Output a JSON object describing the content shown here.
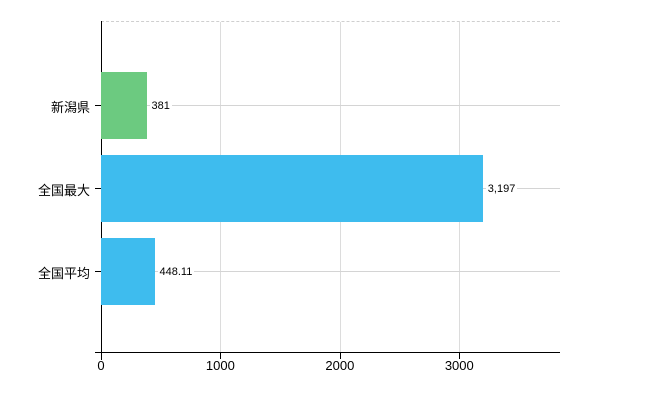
{
  "chart_data": {
    "type": "bar",
    "orientation": "horizontal",
    "title": "",
    "xlabel": "",
    "ylabel": "",
    "grid": true,
    "xlim": [
      0,
      3843
    ],
    "categories": [
      "新潟県",
      "全国最大",
      "全国平均"
    ],
    "values": [
      381,
      3197,
      448.11
    ],
    "x_tick_values": [
      0,
      1000,
      2000,
      3000
    ],
    "x_ticks": [
      "0",
      "1000",
      "2000",
      "3000"
    ],
    "rows": [
      {
        "label": "新潟県",
        "value": 381,
        "value_label": "381",
        "color": "#6cca80"
      },
      {
        "label": "全国最大",
        "value": 3197,
        "value_label": "3,197",
        "color": "#3ebcee"
      },
      {
        "label": "全国平均",
        "value": 448.11,
        "value_label": "448.11",
        "color": "#3ebcee"
      }
    ],
    "colors": {
      "bar_green": "#6cca80",
      "bar_blue": "#3ebcee",
      "axis": "#000000",
      "gridline": "#d9d9d9",
      "background": "#ffffff"
    }
  }
}
